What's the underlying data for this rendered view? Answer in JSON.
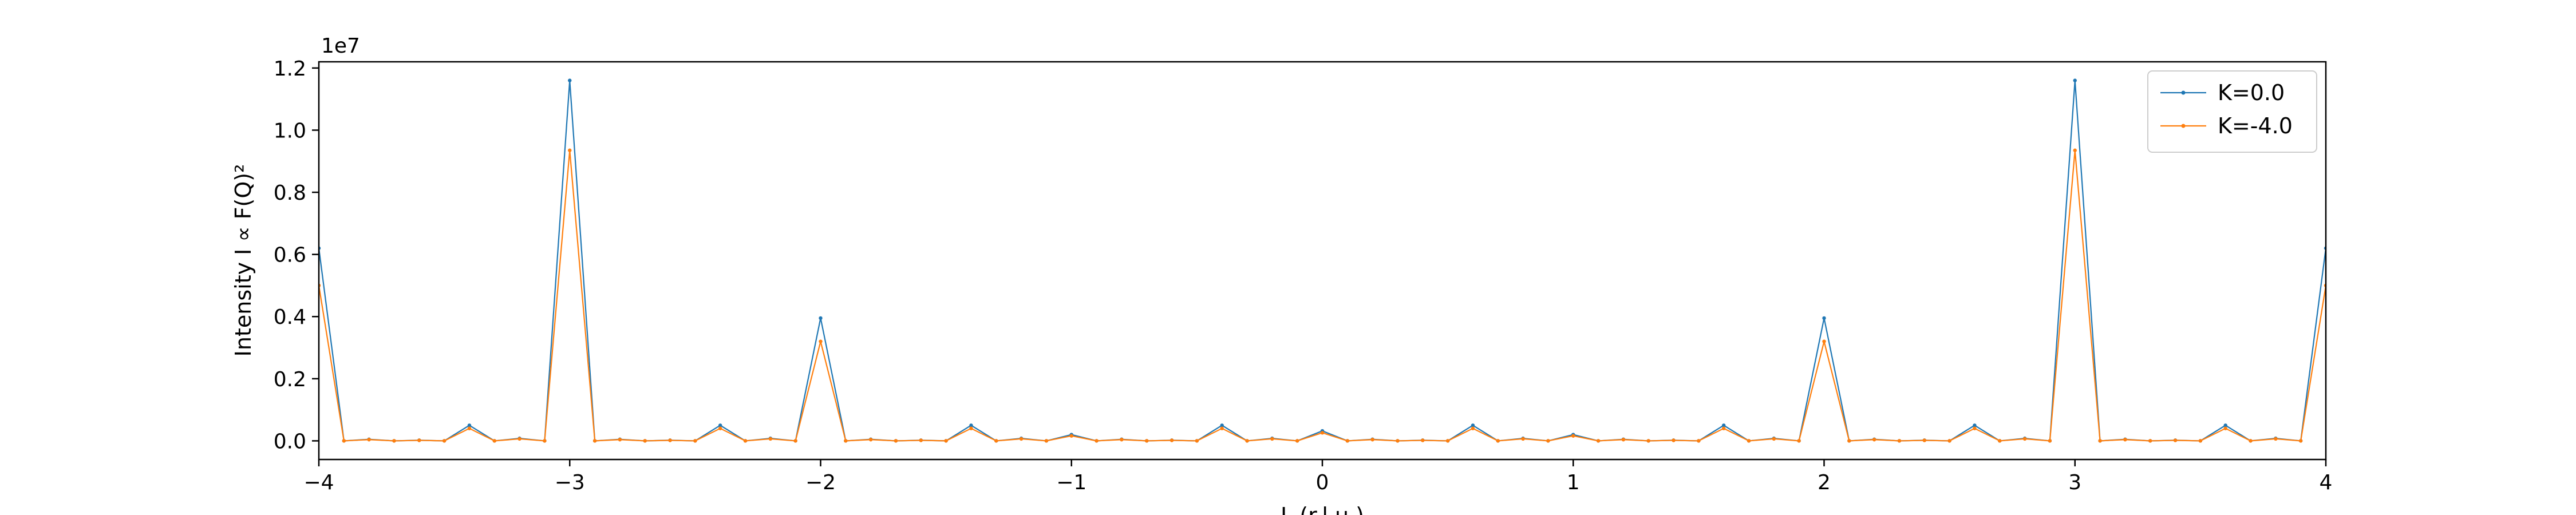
{
  "chart_data": {
    "type": "line",
    "title": "",
    "xlabel": "L (r.l.u.)",
    "ylabel": "Intensity I ∝ F(Q)²",
    "y_scale_label": "1e7",
    "xlim": [
      -4,
      4
    ],
    "ylim": [
      -600000,
      12200000
    ],
    "xticks": [
      -4,
      -3,
      -2,
      -1,
      0,
      1,
      2,
      3,
      4
    ],
    "xtick_labels": [
      "−4",
      "−3",
      "−2",
      "−1",
      "0",
      "1",
      "2",
      "3",
      "4"
    ],
    "yticks": [
      0,
      2000000,
      4000000,
      6000000,
      8000000,
      10000000,
      12000000
    ],
    "ytick_labels": [
      "0.0",
      "0.2",
      "0.4",
      "0.6",
      "0.8",
      "1.0",
      "1.2"
    ],
    "grid": false,
    "legend": "top-right",
    "x": [
      -4.0,
      -3.9,
      -3.8,
      -3.7,
      -3.6,
      -3.5,
      -3.4,
      -3.3,
      -3.2,
      -3.1,
      -3.0,
      -2.9,
      -2.8,
      -2.7,
      -2.6,
      -2.5,
      -2.4,
      -2.3,
      -2.2,
      -2.1,
      -2.0,
      -1.9,
      -1.8,
      -1.7,
      -1.6,
      -1.5,
      -1.4,
      -1.3,
      -1.2,
      -1.1,
      -1.0,
      -0.9,
      -0.8,
      -0.7,
      -0.6,
      -0.5,
      -0.4,
      -0.3,
      -0.2,
      -0.1,
      0.0,
      0.1,
      0.2,
      0.3,
      0.4,
      0.5,
      0.6,
      0.7,
      0.8,
      0.9,
      1.0,
      1.1,
      1.2,
      1.3,
      1.4,
      1.5,
      1.6,
      1.7,
      1.8,
      1.9,
      2.0,
      2.1,
      2.2,
      2.3,
      2.4,
      2.5,
      2.6,
      2.7,
      2.8,
      2.9,
      3.0,
      3.1,
      3.2,
      3.3,
      3.4,
      3.5,
      3.6,
      3.7,
      3.8,
      3.9,
      4.0
    ],
    "series": [
      {
        "name": "K=0.0",
        "color": "#1f77b4",
        "values": [
          6200000,
          0,
          50000,
          0,
          20000,
          0,
          500000,
          0,
          80000,
          0,
          11600000,
          0,
          50000,
          0,
          20000,
          0,
          500000,
          0,
          80000,
          0,
          3950000,
          0,
          50000,
          0,
          20000,
          0,
          500000,
          0,
          80000,
          0,
          200000,
          0,
          50000,
          0,
          20000,
          0,
          500000,
          0,
          80000,
          0,
          320000,
          0,
          50000,
          0,
          20000,
          0,
          500000,
          0,
          80000,
          0,
          200000,
          0,
          50000,
          0,
          20000,
          0,
          500000,
          0,
          80000,
          0,
          3950000,
          0,
          50000,
          0,
          20000,
          0,
          500000,
          0,
          80000,
          0,
          11600000,
          0,
          50000,
          0,
          20000,
          0,
          500000,
          0,
          80000,
          0,
          6200000
        ]
      },
      {
        "name": "K=-4.0",
        "color": "#ff7f0e",
        "values": [
          5000000,
          0,
          40000,
          0,
          16000,
          0,
          400000,
          0,
          64000,
          0,
          9350000,
          0,
          40000,
          0,
          16000,
          0,
          400000,
          0,
          64000,
          0,
          3200000,
          0,
          40000,
          0,
          16000,
          0,
          400000,
          0,
          64000,
          0,
          160000,
          0,
          40000,
          0,
          16000,
          0,
          400000,
          0,
          64000,
          0,
          260000,
          0,
          40000,
          0,
          16000,
          0,
          400000,
          0,
          64000,
          0,
          160000,
          0,
          40000,
          0,
          16000,
          0,
          400000,
          0,
          64000,
          0,
          3200000,
          0,
          40000,
          0,
          16000,
          0,
          400000,
          0,
          64000,
          0,
          9350000,
          0,
          40000,
          0,
          16000,
          0,
          400000,
          0,
          64000,
          0,
          5000000
        ]
      }
    ]
  }
}
